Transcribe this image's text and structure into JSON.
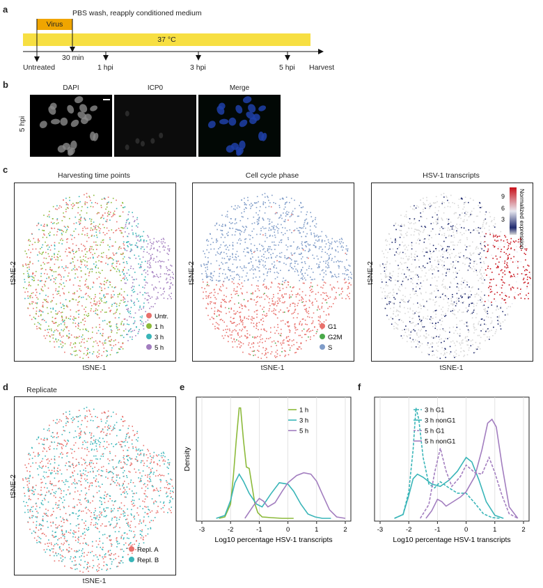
{
  "panel_labels": {
    "a": "a",
    "b": "b",
    "c": "c",
    "d": "d",
    "e": "e",
    "f": "f"
  },
  "timeline": {
    "wash_label": "PBS wash, reapply conditioned medium",
    "virus_label": "Virus",
    "temperature_label": "37 °C",
    "ticks": [
      "Untreated",
      "30 min",
      "1 hpi",
      "3 hpi",
      "5 hpi",
      "Harvest"
    ],
    "colors": {
      "virus": "#f0a500",
      "temperature": "#f7df42"
    }
  },
  "microscopy": {
    "row_label": "5 hpi",
    "channels": [
      "DAPI",
      "ICP0",
      "Merge"
    ]
  },
  "tsne_panels": {
    "axis_x": "tSNE-1",
    "axis_y": "tSNE-2",
    "time_points": {
      "title": "Harvesting time points",
      "legend": [
        {
          "label": "Untr.",
          "color": "#e8706b"
        },
        {
          "label": "1 h",
          "color": "#8cba3a"
        },
        {
          "label": "3 h",
          "color": "#39b5b8"
        },
        {
          "label": "5 h",
          "color": "#a27dbf"
        }
      ]
    },
    "cell_cycle": {
      "title": "Cell cycle phase",
      "legend": [
        {
          "label": "G1",
          "color": "#e8706b"
        },
        {
          "label": "G2M",
          "color": "#4aa94a"
        },
        {
          "label": "S",
          "color": "#7f9cc8"
        }
      ]
    },
    "hsv": {
      "title": "HSV-1 transcripts",
      "colorbar_label": "Normalized expression",
      "colorbar_ticks": [
        "9",
        "6",
        "3"
      ],
      "colors": {
        "high": "#c8101a",
        "mid": "#e8e8f0",
        "low": "#1f2a6e",
        "zero": "#d8d8d8"
      }
    },
    "replicate": {
      "title": "Replicate",
      "legend": [
        {
          "label": "Repl. A",
          "color": "#e8706b"
        },
        {
          "label": "Repl. B",
          "color": "#39b5b8"
        }
      ]
    }
  },
  "chart_data": [
    {
      "type": "line",
      "panel": "e",
      "xlabel": "Log10 percentage HSV-1 transcripts",
      "ylabel": "Density",
      "xlim": [
        -3,
        2
      ],
      "xticks": [
        "-3",
        "-2",
        "-1",
        "0",
        "1",
        "2"
      ],
      "grid": true,
      "legend_position": "top-right",
      "series": [
        {
          "name": "1 h",
          "color": "#8cba3a",
          "dashed": false,
          "x": [
            -2.4,
            -2.2,
            -2.0,
            -1.9,
            -1.8,
            -1.7,
            -1.65,
            -1.55,
            -1.45,
            -1.35,
            -1.25,
            -1.15,
            -1.05,
            -0.9,
            -0.6,
            -0.2,
            0.2
          ],
          "y": [
            0.0,
            0.02,
            0.2,
            0.6,
            1.1,
            1.55,
            1.55,
            1.1,
            0.72,
            0.7,
            0.45,
            0.2,
            0.08,
            0.02,
            0.01,
            0.0,
            0.0
          ]
        },
        {
          "name": "3 h",
          "color": "#39b5b8",
          "dashed": false,
          "x": [
            -2.5,
            -2.2,
            -2.0,
            -1.85,
            -1.7,
            -1.55,
            -1.35,
            -1.1,
            -0.9,
            -0.6,
            -0.3,
            0.0,
            0.2,
            0.45,
            0.7,
            0.95,
            1.2,
            1.5
          ],
          "y": [
            0.0,
            0.04,
            0.25,
            0.5,
            0.62,
            0.52,
            0.35,
            0.2,
            0.16,
            0.34,
            0.5,
            0.48,
            0.38,
            0.2,
            0.06,
            0.02,
            0.0,
            0.0
          ]
        },
        {
          "name": "5 h",
          "color": "#a27dbf",
          "dashed": false,
          "x": [
            -1.5,
            -1.2,
            -1.0,
            -0.85,
            -0.7,
            -0.45,
            -0.2,
            0.0,
            0.3,
            0.55,
            0.8,
            1.0,
            1.2,
            1.45,
            1.7,
            2.0
          ],
          "y": [
            0.0,
            0.18,
            0.28,
            0.24,
            0.16,
            0.22,
            0.38,
            0.5,
            0.6,
            0.64,
            0.62,
            0.52,
            0.34,
            0.12,
            0.02,
            0.0
          ]
        }
      ]
    },
    {
      "type": "line",
      "panel": "f",
      "xlabel": "Log10 percentage HSV-1 transcripts",
      "ylabel": "",
      "xlim": [
        -3,
        2
      ],
      "xticks": [
        "-3",
        "-2",
        "-1",
        "0",
        "1",
        "2"
      ],
      "grid": true,
      "legend_position": "top-left",
      "series": [
        {
          "name": "3 h G1",
          "color": "#39b5b8",
          "dashed": true,
          "x": [
            -2.5,
            -2.2,
            -2.0,
            -1.85,
            -1.75,
            -1.65,
            -1.5,
            -1.3,
            -1.1,
            -0.9,
            -0.6,
            -0.3,
            0.0,
            0.3,
            0.6,
            0.9,
            1.2
          ],
          "y": [
            0.0,
            0.05,
            0.35,
            0.9,
            1.45,
            1.3,
            0.8,
            0.45,
            0.4,
            0.48,
            0.4,
            0.33,
            0.33,
            0.2,
            0.06,
            0.01,
            0.0
          ]
        },
        {
          "name": "3 h nonG1",
          "color": "#39b5b8",
          "dashed": false,
          "x": [
            -2.5,
            -2.2,
            -2.0,
            -1.85,
            -1.7,
            -1.5,
            -1.2,
            -0.9,
            -0.6,
            -0.3,
            0.0,
            0.2,
            0.45,
            0.7,
            1.0,
            1.3
          ],
          "y": [
            0.0,
            0.05,
            0.3,
            0.52,
            0.58,
            0.54,
            0.45,
            0.42,
            0.5,
            0.62,
            0.8,
            0.74,
            0.5,
            0.22,
            0.04,
            0.0
          ]
        },
        {
          "name": "5 h G1",
          "color": "#a27dbf",
          "dashed": true,
          "x": [
            -1.6,
            -1.3,
            -1.1,
            -0.9,
            -0.7,
            -0.5,
            -0.2,
            0.0,
            0.3,
            0.55,
            0.8,
            1.0,
            1.25,
            1.5,
            1.8
          ],
          "y": [
            0.0,
            0.18,
            0.6,
            0.92,
            0.62,
            0.42,
            0.55,
            0.7,
            0.6,
            0.58,
            0.8,
            0.6,
            0.3,
            0.06,
            0.0
          ]
        },
        {
          "name": "5 h nonG1",
          "color": "#a27dbf",
          "dashed": false,
          "x": [
            -1.4,
            -1.2,
            -1.0,
            -0.85,
            -0.7,
            -0.45,
            -0.2,
            0.0,
            0.3,
            0.55,
            0.75,
            0.9,
            1.05,
            1.25,
            1.5,
            1.8
          ],
          "y": [
            0.0,
            0.1,
            0.25,
            0.22,
            0.16,
            0.22,
            0.28,
            0.35,
            0.55,
            0.9,
            1.25,
            1.3,
            1.2,
            0.7,
            0.15,
            0.0
          ]
        }
      ]
    }
  ]
}
